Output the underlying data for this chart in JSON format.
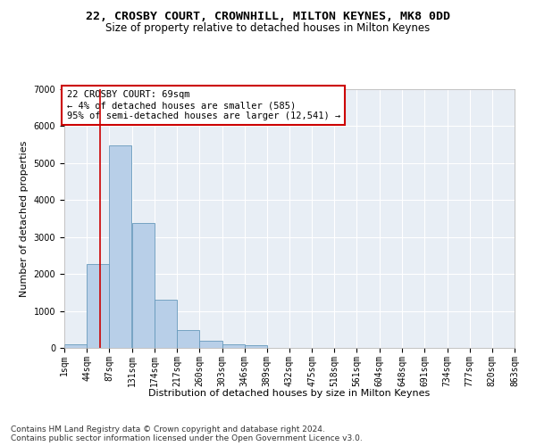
{
  "title": "22, CROSBY COURT, CROWNHILL, MILTON KEYNES, MK8 0DD",
  "subtitle": "Size of property relative to detached houses in Milton Keynes",
  "xlabel": "Distribution of detached houses by size in Milton Keynes",
  "ylabel": "Number of detached properties",
  "footnote1": "Contains HM Land Registry data © Crown copyright and database right 2024.",
  "footnote2": "Contains public sector information licensed under the Open Government Licence v3.0.",
  "annotation_line1": "22 CROSBY COURT: 69sqm",
  "annotation_line2": "← 4% of detached houses are smaller (585)",
  "annotation_line3": "95% of semi-detached houses are larger (12,541) →",
  "property_size": 69,
  "bar_values": [
    100,
    2280,
    5480,
    3380,
    1310,
    490,
    190,
    100,
    80,
    0,
    0,
    0,
    0,
    0,
    0,
    0,
    0,
    0,
    0,
    0
  ],
  "bin_edges": [
    1,
    44,
    87,
    131,
    174,
    217,
    260,
    303,
    346,
    389,
    432,
    475,
    518,
    561,
    604,
    648,
    691,
    734,
    777,
    820,
    863
  ],
  "bin_labels": [
    "1sqm",
    "44sqm",
    "87sqm",
    "131sqm",
    "174sqm",
    "217sqm",
    "260sqm",
    "303sqm",
    "346sqm",
    "389sqm",
    "432sqm",
    "475sqm",
    "518sqm",
    "561sqm",
    "604sqm",
    "648sqm",
    "691sqm",
    "734sqm",
    "777sqm",
    "820sqm",
    "863sqm"
  ],
  "bar_color": "#b8cfe8",
  "bar_edge_color": "#6699bb",
  "vline_color": "#cc0000",
  "vline_x": 69,
  "annotation_box_color": "#cc0000",
  "ylim": [
    0,
    7000
  ],
  "yticks": [
    0,
    1000,
    2000,
    3000,
    4000,
    5000,
    6000,
    7000
  ],
  "bg_color": "#e8eef5",
  "grid_color": "#ffffff",
  "title_fontsize": 9.5,
  "subtitle_fontsize": 8.5,
  "axis_label_fontsize": 8,
  "tick_fontsize": 7,
  "annotation_fontsize": 7.5,
  "footnote_fontsize": 6.5
}
